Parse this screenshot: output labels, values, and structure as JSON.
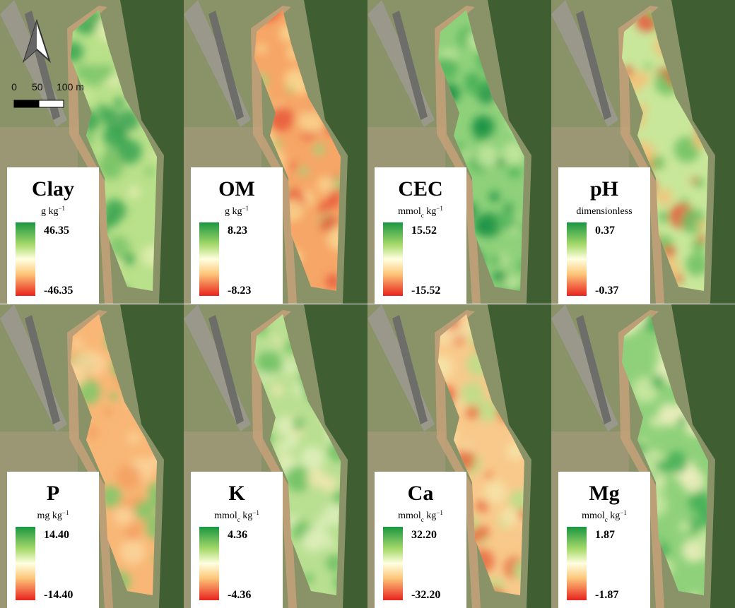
{
  "scale_bar": {
    "labels": [
      "0",
      "50",
      "100 m"
    ]
  },
  "panels": [
    {
      "title": "Clay",
      "unit": [
        {
          "text": "g kg"
        },
        {
          "text": "−1",
          "sup": true
        }
      ],
      "max": "46.35",
      "min": "-46.35"
    },
    {
      "title": "OM",
      "unit": [
        {
          "text": "g kg"
        },
        {
          "text": "−1",
          "sup": true
        }
      ],
      "max": "8.23",
      "min": "-8.23"
    },
    {
      "title": "CEC",
      "unit": [
        {
          "text": "mmol"
        },
        {
          "text": "c",
          "sub": true
        },
        {
          "text": " kg"
        },
        {
          "text": "−1",
          "sup": true
        }
      ],
      "max": "15.52",
      "min": "-15.52"
    },
    {
      "title": "pH",
      "unit": [
        {
          "text": "dimensionless"
        }
      ],
      "max": "0.37",
      "min": "-0.37"
    },
    {
      "title": "P",
      "unit": [
        {
          "text": "mg kg"
        },
        {
          "text": "−1",
          "sup": true
        }
      ],
      "max": "14.40",
      "min": "-14.40"
    },
    {
      "title": "K",
      "unit": [
        {
          "text": "mmol"
        },
        {
          "text": "c",
          "sub": true
        },
        {
          "text": " kg"
        },
        {
          "text": "−1",
          "sup": true
        }
      ],
      "max": "4.36",
      "min": "-4.36"
    },
    {
      "title": "Ca",
      "unit": [
        {
          "text": "mmol"
        },
        {
          "text": "c",
          "sub": true
        },
        {
          "text": " kg"
        },
        {
          "text": "−1",
          "sup": true
        }
      ],
      "max": "32.20",
      "min": "-32.20"
    },
    {
      "title": "Mg",
      "unit": [
        {
          "text": "mmol"
        },
        {
          "text": "c",
          "sub": true
        },
        {
          "text": " kg"
        },
        {
          "text": "−1",
          "sup": true
        }
      ],
      "max": "1.87",
      "min": "-1.87"
    }
  ]
}
